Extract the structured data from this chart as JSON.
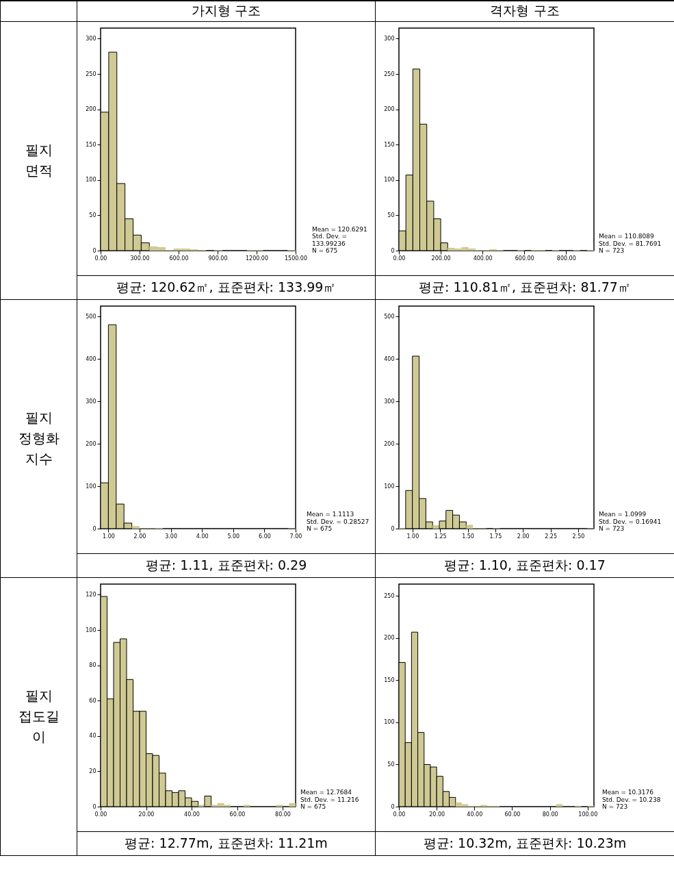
{
  "chart_data": [
    {
      "type": "histogram",
      "title": "가지형 구조",
      "color": "#cfc994",
      "bins": [
        0,
        62.5,
        125,
        187.5,
        250,
        312.5,
        375,
        437.5,
        500,
        562.5,
        625,
        687.5,
        750,
        812.5,
        875,
        937.5,
        1000,
        1062.5,
        1125,
        1187.5,
        1250,
        1312.5,
        1375,
        1437.5,
        1500
      ],
      "values": [
        196,
        281,
        95,
        45,
        22,
        11,
        6,
        5,
        1,
        3,
        3,
        2,
        1,
        0,
        1,
        0,
        0,
        0,
        1,
        1,
        0,
        0,
        0,
        1
      ],
      "xlim": [
        0,
        1500
      ],
      "ylim": [
        0,
        315
      ],
      "xticks": [
        {
          "value": 0,
          "label": "0.00"
        },
        {
          "value": 300,
          "label": "300.00"
        },
        {
          "value": 600,
          "label": "600.00"
        },
        {
          "value": 900,
          "label": "900.00"
        },
        {
          "value": 1200,
          "label": "1200.00"
        },
        {
          "value": 1500,
          "label": "1500.00"
        }
      ],
      "yticks": [
        0,
        50,
        100,
        150,
        200,
        250,
        300
      ],
      "annotations": [
        "Mean = 120.6291\nStd. Dev. =\n133.99236\nN = 675",
        "평균: 120.62㎡, 표준편차: 133.99㎡",
        "필지\n면적"
      ]
    },
    {
      "type": "histogram",
      "title": "격자형 구조",
      "color": "#cfc994",
      "bins": [
        0,
        33.33,
        66.67,
        100,
        133.33,
        166.67,
        200,
        233.33,
        266.67,
        300,
        333.33,
        366.67,
        400,
        433.33,
        466.67,
        500,
        533.33,
        566.67,
        600,
        633.33,
        666.67,
        700,
        733.33,
        766.67,
        800,
        833.33,
        866.67,
        900,
        933.33
      ],
      "values": [
        28,
        107,
        257,
        179,
        70,
        45,
        11,
        4,
        3,
        5,
        3,
        1,
        1,
        2,
        1,
        0,
        0,
        1,
        0,
        1,
        1,
        0,
        1,
        0,
        0,
        1,
        0,
        1
      ],
      "xlim": [
        0,
        933.33
      ],
      "ylim": [
        0,
        315
      ],
      "xticks": [
        {
          "value": 0,
          "label": "0.00"
        },
        {
          "value": 200,
          "label": "200.00"
        },
        {
          "value": 400,
          "label": "400.00"
        },
        {
          "value": 600,
          "label": "600.00"
        },
        {
          "value": 800,
          "label": "800.00"
        }
      ],
      "yticks": [
        0,
        50,
        100,
        150,
        200,
        250,
        300
      ],
      "annotations": [
        "Mean = 110.8089\nStd. Dev. = 81.7691\nN = 723",
        "평균: 110.81㎡, 표준편차: 81.77㎡"
      ]
    },
    {
      "type": "histogram",
      "color": "#cfc994",
      "bins": [
        0.75,
        1,
        1.25,
        1.5,
        1.75,
        2,
        2.25,
        2.5,
        2.75,
        3,
        3.25,
        3.5,
        3.75,
        4,
        4.25,
        4.5,
        4.75,
        5,
        5.25,
        5.5,
        5.75,
        6,
        6.25,
        6.5,
        6.75,
        7
      ],
      "values": [
        108,
        481,
        58,
        13,
        6,
        1,
        1,
        2,
        0,
        0,
        0,
        0,
        0,
        0,
        0,
        0,
        0,
        0,
        0,
        0,
        0,
        0,
        0,
        0,
        1
      ],
      "xlim": [
        0.75,
        7
      ],
      "ylim": [
        0,
        525
      ],
      "xticks": [
        {
          "value": 1,
          "label": "1.00"
        },
        {
          "value": 2,
          "label": "2.00"
        },
        {
          "value": 3,
          "label": "3.00"
        },
        {
          "value": 4,
          "label": "4.00"
        },
        {
          "value": 5,
          "label": "5.00"
        },
        {
          "value": 6,
          "label": "6.00"
        },
        {
          "value": 7,
          "label": "7.00"
        }
      ],
      "yticks": [
        0,
        100,
        200,
        300,
        400,
        500
      ],
      "annotations": [
        "Mean = 1.1113\nStd. Dev. = 0.28527\nN = 675",
        "평균: 1.11, 표준편차: 0.29",
        "필지\n정형화\n지수"
      ]
    },
    {
      "type": "histogram",
      "color": "#cfc994",
      "bins": [
        0.877,
        0.938,
        0.999,
        1.06,
        1.121,
        1.182,
        1.243,
        1.303,
        1.364,
        1.425,
        1.486,
        1.547,
        1.608,
        1.669,
        1.73,
        1.791,
        1.851,
        1.912,
        1.973,
        2.034,
        2.095,
        2.156,
        2.217,
        2.278,
        2.339,
        2.399,
        2.46,
        2.521,
        2.582,
        2.643
      ],
      "values": [
        2,
        90,
        407,
        71,
        16,
        8,
        18,
        43,
        32,
        16,
        9,
        1,
        1,
        0,
        1,
        0,
        0,
        0,
        0,
        0,
        0,
        0,
        0,
        0,
        0,
        0,
        0,
        0,
        1
      ],
      "xlim": [
        0.877,
        2.643
      ],
      "ylim": [
        0,
        525
      ],
      "xticks": [
        {
          "value": 1,
          "label": "1.00"
        },
        {
          "value": 1.25,
          "label": "1.25"
        },
        {
          "value": 1.5,
          "label": "1.50"
        },
        {
          "value": 1.75,
          "label": "1.75"
        },
        {
          "value": 2,
          "label": "2.00"
        },
        {
          "value": 2.25,
          "label": "2.25"
        },
        {
          "value": 2.5,
          "label": "2.50"
        }
      ],
      "yticks": [
        0,
        100,
        200,
        300,
        400,
        500
      ],
      "annotations": [
        "Mean = 1.0999\nStd. Dev. = 0.16941\nN = 723",
        "평균: 1.10, 표준편차: 0.17"
      ]
    },
    {
      "type": "histogram",
      "color": "#cfc994",
      "bins": [
        0,
        2.857,
        5.714,
        8.571,
        11.429,
        14.286,
        17.143,
        20,
        22.857,
        25.714,
        28.571,
        31.429,
        34.286,
        37.143,
        40,
        42.857,
        45.714,
        48.571,
        51.429,
        54.286,
        57.143,
        60,
        62.857,
        65.714,
        68.571,
        71.429,
        74.286,
        77.143,
        80,
        82.857,
        85.714
      ],
      "values": [
        119,
        61,
        93,
        95,
        72,
        54,
        54,
        30,
        29,
        19,
        9,
        8,
        9,
        5,
        3,
        1,
        6,
        1,
        2,
        1,
        0,
        0,
        1,
        0,
        0,
        0,
        0,
        1,
        0,
        2
      ],
      "xlim": [
        0,
        85.714
      ],
      "ylim": [
        0,
        126
      ],
      "xticks": [
        {
          "value": 0,
          "label": "0.00"
        },
        {
          "value": 20,
          "label": "20.00"
        },
        {
          "value": 40,
          "label": "40.00"
        },
        {
          "value": 60,
          "label": "60.00"
        },
        {
          "value": 80,
          "label": "80.00"
        }
      ],
      "yticks": [
        0,
        20,
        40,
        60,
        80,
        100,
        120
      ],
      "annotations": [
        "Mean = 12.7684\nStd. Dev. = 11.216\nN = 675",
        "평균: 12.77m, 표준편차: 11.21m",
        "필지\n접도길\n이"
      ]
    },
    {
      "type": "histogram",
      "color": "#cfc994",
      "bins": [
        0,
        3.333,
        6.667,
        10,
        13.333,
        16.667,
        20,
        23.333,
        26.667,
        30,
        33.333,
        36.667,
        40,
        43.333,
        46.667,
        50,
        53.333,
        56.667,
        60,
        63.333,
        66.667,
        70,
        73.333,
        76.667,
        80,
        83.333,
        86.667,
        90,
        93.333,
        96.667,
        100,
        103.333
      ],
      "values": [
        171,
        76,
        207,
        88,
        50,
        47,
        36,
        18,
        11,
        5,
        3,
        1,
        1,
        2,
        1,
        1,
        0,
        0,
        0,
        0,
        0,
        0,
        0,
        0,
        0,
        3,
        0,
        0,
        1,
        0,
        1
      ],
      "xlim": [
        0,
        103.333
      ],
      "ylim": [
        0,
        264
      ],
      "xticks": [
        {
          "value": 0,
          "label": "0.00"
        },
        {
          "value": 20,
          "label": "20.00"
        },
        {
          "value": 40,
          "label": "40.00"
        },
        {
          "value": 60,
          "label": "60.00"
        },
        {
          "value": 80,
          "label": "80.00"
        },
        {
          "value": 100,
          "label": "100.00"
        }
      ],
      "yticks": [
        0,
        50,
        100,
        150,
        200,
        250
      ],
      "annotations": [
        "Mean = 10.3176\nStd. Dev. = 10.238\nN = 723",
        "평균: 10.32m, 표준편차: 10.23m"
      ]
    }
  ]
}
